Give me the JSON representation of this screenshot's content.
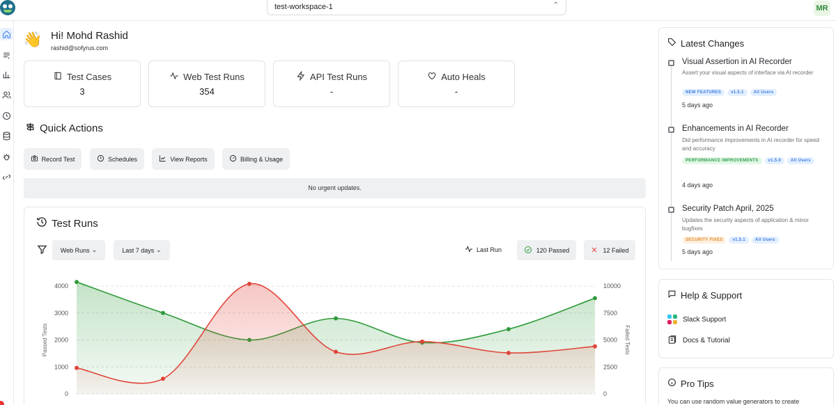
{
  "header": {
    "workspace": "test-workspace-1",
    "avatar_initials": "MR"
  },
  "sidebar": {
    "items": [
      {
        "icon": "home-icon",
        "active": true
      },
      {
        "icon": "test-cases-icon"
      },
      {
        "icon": "reports-bar-icon"
      },
      {
        "icon": "users-icon"
      },
      {
        "icon": "clock-icon"
      },
      {
        "icon": "database-icon"
      },
      {
        "icon": "bug-icon"
      },
      {
        "icon": "integrations-icon"
      }
    ]
  },
  "greeting": {
    "title": "Hi! Mohd Rashid",
    "email": "rashid@sofyrus.com"
  },
  "stats": [
    {
      "label": "Test Cases",
      "value": "3"
    },
    {
      "label": "Web Test Runs",
      "value": "354"
    },
    {
      "label": "API Test Runs",
      "value": "-"
    },
    {
      "label": "Auto Heals",
      "value": "-"
    }
  ],
  "quick_actions": {
    "title": "Quick Actions",
    "buttons": [
      "Record Test",
      "Schedules",
      "View Reports",
      "Billing & Usage"
    ],
    "urgent_text": "No urgent updates."
  },
  "test_runs": {
    "title": "Test Runs",
    "run_type": "Web Runs",
    "period": "Last 7 days",
    "last_run_label": "Last Run",
    "passed_label": "120 Passed",
    "failed_label": "12 Failed"
  },
  "chart_data": {
    "type": "line",
    "ylabel": "Passed Tests",
    "y2label": "Failed Tests",
    "ylim": [
      0,
      4000
    ],
    "y2lim": [
      0,
      10000
    ],
    "y_ticks": [
      "0",
      "1000",
      "2000",
      "3000",
      "4000"
    ],
    "y2_ticks": [
      "0",
      "2500",
      "5000",
      "7500",
      "10000"
    ],
    "grid": true,
    "series": [
      {
        "axis": "left",
        "color": "#2e9b3a",
        "values": [
          4150,
          3000,
          2000,
          2800,
          1900,
          2400,
          3550
        ]
      },
      {
        "axis": "right",
        "color": "#e0453a",
        "values": [
          2400,
          1400,
          10200,
          3900,
          4850,
          3800,
          4400
        ]
      }
    ]
  },
  "latest_changes": {
    "title": "Latest Changes",
    "items": [
      {
        "title": "Visual Assertion in AI Recorder",
        "desc": "Assert your visual aspects of interface via AI recorder",
        "tags": [
          {
            "text": "NEW FEATURES",
            "color": "blue"
          },
          {
            "text": "v1.5.1",
            "color": "blue"
          },
          {
            "text": "All Users",
            "color": "blue"
          }
        ],
        "date": "5 days ago"
      },
      {
        "title": "Enhancements in AI Recorder",
        "desc": "Did performance improvements in AI recorder for speed and accuracy",
        "tags": [
          {
            "text": "PERFORMANCE IMPROVEMENTS",
            "color": "green"
          },
          {
            "text": "v1.5.0",
            "color": "blue"
          },
          {
            "text": "All Users",
            "color": "blue"
          }
        ],
        "date": "4 days ago"
      },
      {
        "title": "Security Patch April, 2025",
        "desc": "Updates the security aspects of application & minor bugfixes",
        "tags": [
          {
            "text": "SECURITY FIXES",
            "color": "orange"
          },
          {
            "text": "v1.5.1",
            "color": "blue"
          },
          {
            "text": "All Users",
            "color": "blue"
          }
        ],
        "date": "5 days ago"
      }
    ]
  },
  "help": {
    "title": "Help & Support",
    "slack": "Slack Support",
    "docs": "Docs & Tutorial"
  },
  "pro_tips": {
    "title": "Pro Tips",
    "text": "You can use random value generators to create"
  }
}
